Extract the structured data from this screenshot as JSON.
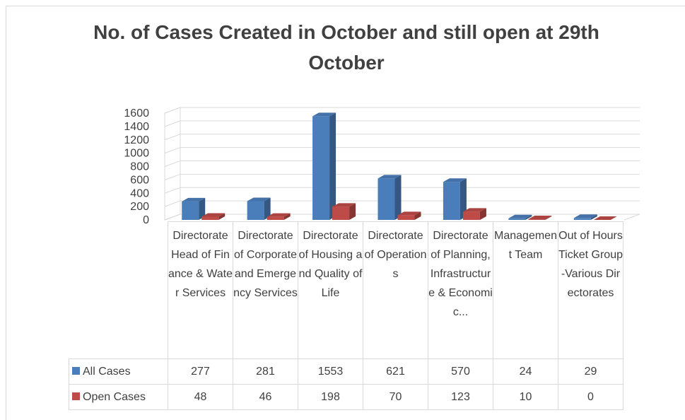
{
  "chart_data": {
    "type": "bar3d",
    "title": "No. of Cases Created in October and still open at 29th October",
    "categories": [
      "Directorate Head of Finance & Water Services",
      "Directorate of Corporate and Emergency Services",
      "Directorate of Housing and Quality of Life",
      "Directorate of Operations",
      "Directorate of Planning, Infrastructure & Economic...",
      "Management Team",
      "Out of Hours Ticket Group-Various Directorates"
    ],
    "series": [
      {
        "name": "All Cases",
        "color": "#4a7ebb",
        "values": [
          277,
          281,
          1553,
          621,
          570,
          24,
          29
        ]
      },
      {
        "name": "Open Cases",
        "color": "#be4b48",
        "values": [
          48,
          46,
          198,
          70,
          123,
          10,
          0
        ]
      }
    ],
    "ylim": [
      0,
      1600
    ],
    "yticks": [
      0,
      200,
      400,
      600,
      800,
      1000,
      1200,
      1400,
      1600
    ],
    "grid": true,
    "data_table": true
  }
}
